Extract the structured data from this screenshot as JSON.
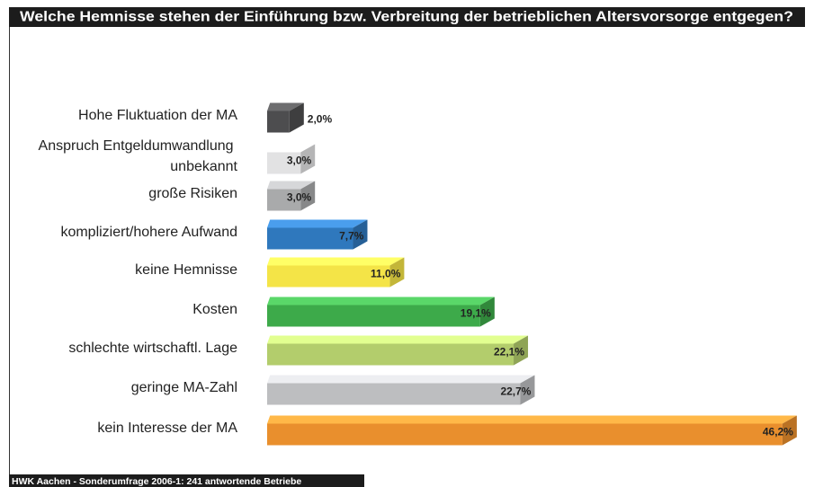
{
  "chart_data": {
    "type": "bar",
    "orientation": "horizontal",
    "title": "Welche Hemnisse stehen der Einführung bzw. Verbreitung der betrieblichen Altersvorsorge entgegen?",
    "source": "HWK Aachen - Sonderumfrage 2006-1: 241 antwortende Betriebe",
    "categories": [
      "Hohe Fluktuation der MA",
      "Anspruch Entgeldumwandlung unbekannt",
      "große Risiken",
      "kompliziert/hohere Aufwand",
      "keine Hemnisse",
      "Kosten",
      "schlechte wirtschaftl. Lage",
      "geringe MA-Zahl",
      "kein Interesse der MA"
    ],
    "values": [
      2.0,
      3.0,
      3.0,
      7.7,
      11.0,
      19.1,
      22.1,
      22.7,
      46.2
    ],
    "value_labels": [
      "2,0%",
      "3,0%",
      "3,0%",
      "7,7%",
      "11,0%",
      "19,1%",
      "22,1%",
      "22,7%",
      "46,2%"
    ],
    "colors": [
      "#4d4d4f",
      "#e2e2e3",
      "#a9aaab",
      "#2f78bd",
      "#f4e447",
      "#3daa4a",
      "#b3cd6c",
      "#bdbec0",
      "#e98f2d"
    ]
  }
}
